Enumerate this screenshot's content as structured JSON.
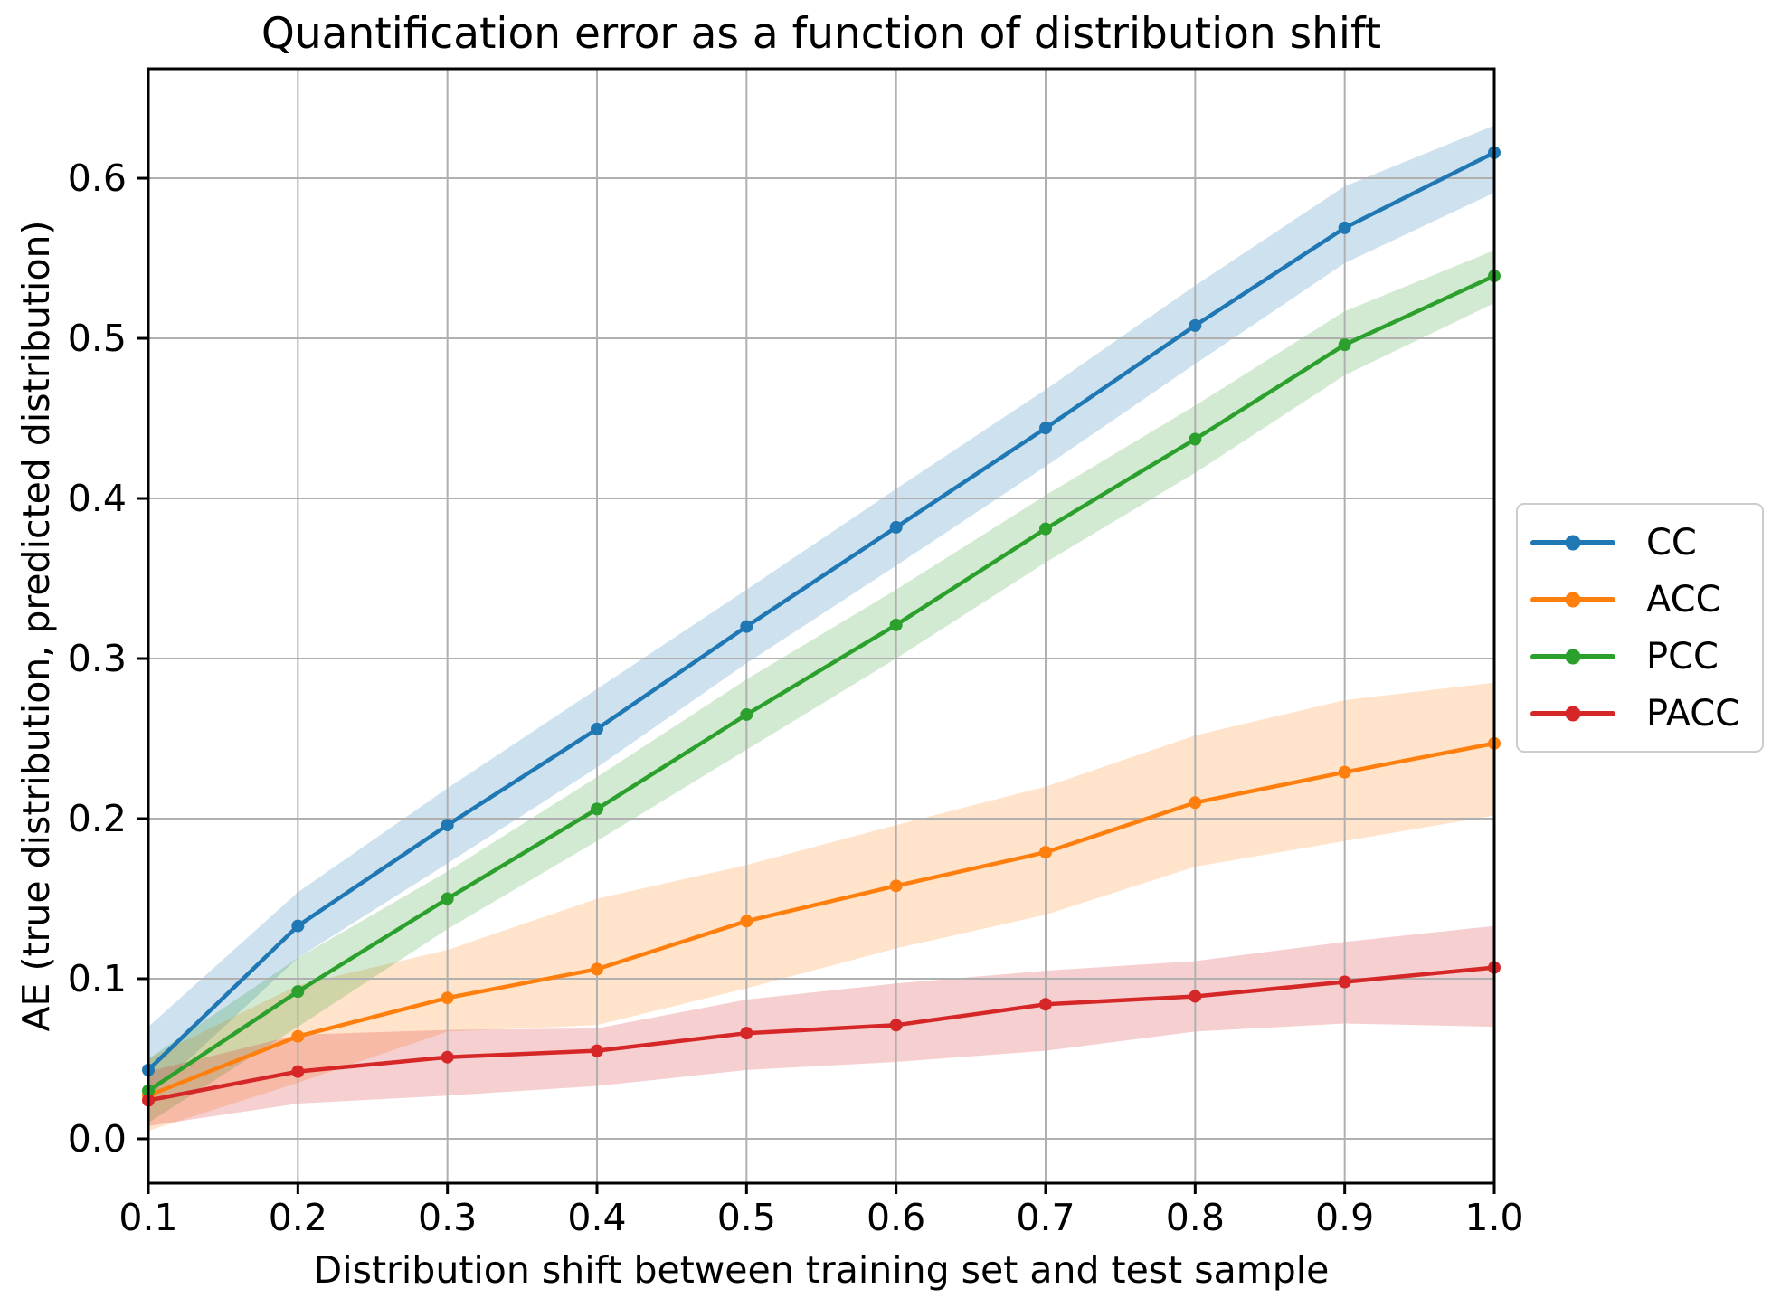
{
  "figure": {
    "title": "Quantification error as a function of distribution shift",
    "xlabel": "Distribution shift between training set and test sample",
    "ylabel": "AE (true distribution, predicted distribution)"
  },
  "chart_data": {
    "type": "line",
    "title": "Quantification error as a function of distribution shift",
    "xlabel": "Distribution shift between training set and test sample",
    "ylabel": "AE (true distribution, predicted distribution)",
    "x": [
      0.1,
      0.2,
      0.3,
      0.4,
      0.5,
      0.6,
      0.7,
      0.8,
      0.9,
      1.0
    ],
    "xtick_labels": [
      "0.1",
      "0.2",
      "0.3",
      "0.4",
      "0.5",
      "0.6",
      "0.7",
      "0.8",
      "0.9",
      "1.0"
    ],
    "ytick_values": [
      0.0,
      0.1,
      0.2,
      0.3,
      0.4,
      0.5,
      0.6
    ],
    "ytick_labels": [
      "0.0",
      "0.1",
      "0.2",
      "0.3",
      "0.4",
      "0.5",
      "0.6"
    ],
    "xlim": [
      0.1,
      1.0
    ],
    "ylim": [
      -0.0277,
      0.6684
    ],
    "grid": true,
    "legend_position": "right-outside",
    "band_opacity": 0.22,
    "series": [
      {
        "name": "CC",
        "color": "#1f77b4",
        "values": [
          0.043,
          0.133,
          0.196,
          0.256,
          0.32,
          0.382,
          0.444,
          0.508,
          0.569,
          0.616
        ],
        "band_lower": [
          0.026,
          0.113,
          0.172,
          0.232,
          0.297,
          0.358,
          0.42,
          0.484,
          0.547,
          0.591
        ],
        "band_upper": [
          0.07,
          0.154,
          0.219,
          0.281,
          0.343,
          0.406,
          0.468,
          0.533,
          0.595,
          0.633
        ]
      },
      {
        "name": "ACC",
        "color": "#ff7f0e",
        "values": [
          0.027,
          0.064,
          0.088,
          0.106,
          0.136,
          0.158,
          0.179,
          0.21,
          0.229,
          0.247
        ],
        "band_lower": [
          0.005,
          0.035,
          0.067,
          0.071,
          0.094,
          0.119,
          0.14,
          0.17,
          0.186,
          0.202
        ],
        "band_upper": [
          0.05,
          0.096,
          0.118,
          0.15,
          0.171,
          0.196,
          0.22,
          0.252,
          0.274,
          0.285
        ]
      },
      {
        "name": "PCC",
        "color": "#2ca02c",
        "values": [
          0.03,
          0.092,
          0.15,
          0.206,
          0.265,
          0.321,
          0.381,
          0.437,
          0.496,
          0.539
        ],
        "band_lower": [
          0.01,
          0.07,
          0.131,
          0.186,
          0.243,
          0.3,
          0.36,
          0.416,
          0.477,
          0.522
        ],
        "band_upper": [
          0.05,
          0.113,
          0.167,
          0.226,
          0.287,
          0.343,
          0.402,
          0.458,
          0.517,
          0.555
        ]
      },
      {
        "name": "PACC",
        "color": "#d62728",
        "values": [
          0.024,
          0.042,
          0.051,
          0.055,
          0.066,
          0.071,
          0.084,
          0.089,
          0.098,
          0.107
        ],
        "band_lower": [
          0.008,
          0.022,
          0.027,
          0.033,
          0.043,
          0.048,
          0.055,
          0.067,
          0.072,
          0.07
        ],
        "band_upper": [
          0.042,
          0.065,
          0.068,
          0.069,
          0.087,
          0.097,
          0.105,
          0.111,
          0.123,
          0.133
        ]
      }
    ],
    "colors": {
      "grid": "#b0b0b0",
      "spine": "#000000",
      "background": "#ffffff",
      "legend_border": "#cccccc"
    }
  }
}
